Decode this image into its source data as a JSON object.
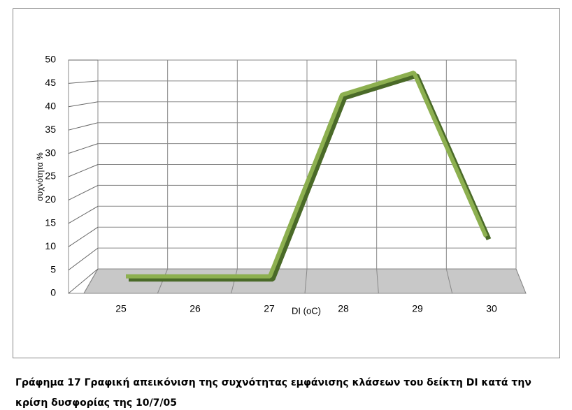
{
  "chart_data": {
    "type": "line3d",
    "y_label": "συχνότητα %",
    "x_label": "DI (oC)",
    "categories": [
      "25",
      "26",
      "27",
      "28",
      "29",
      "30"
    ],
    "values": [
      1,
      1,
      1,
      42,
      47,
      10
    ],
    "color": "#8db050",
    "ylim": [
      0,
      50
    ],
    "yticks": [
      0,
      5,
      10,
      15,
      20,
      25,
      30,
      35,
      40,
      45,
      50
    ],
    "grid": true
  },
  "caption": [
    "Γράφημα 17 Γραφική απεικόνιση της συχνότητας εμφάνισης κλάσεων του δείκτη DI κατά την",
    "κρίση δυσφορίας της 10/7/05"
  ]
}
